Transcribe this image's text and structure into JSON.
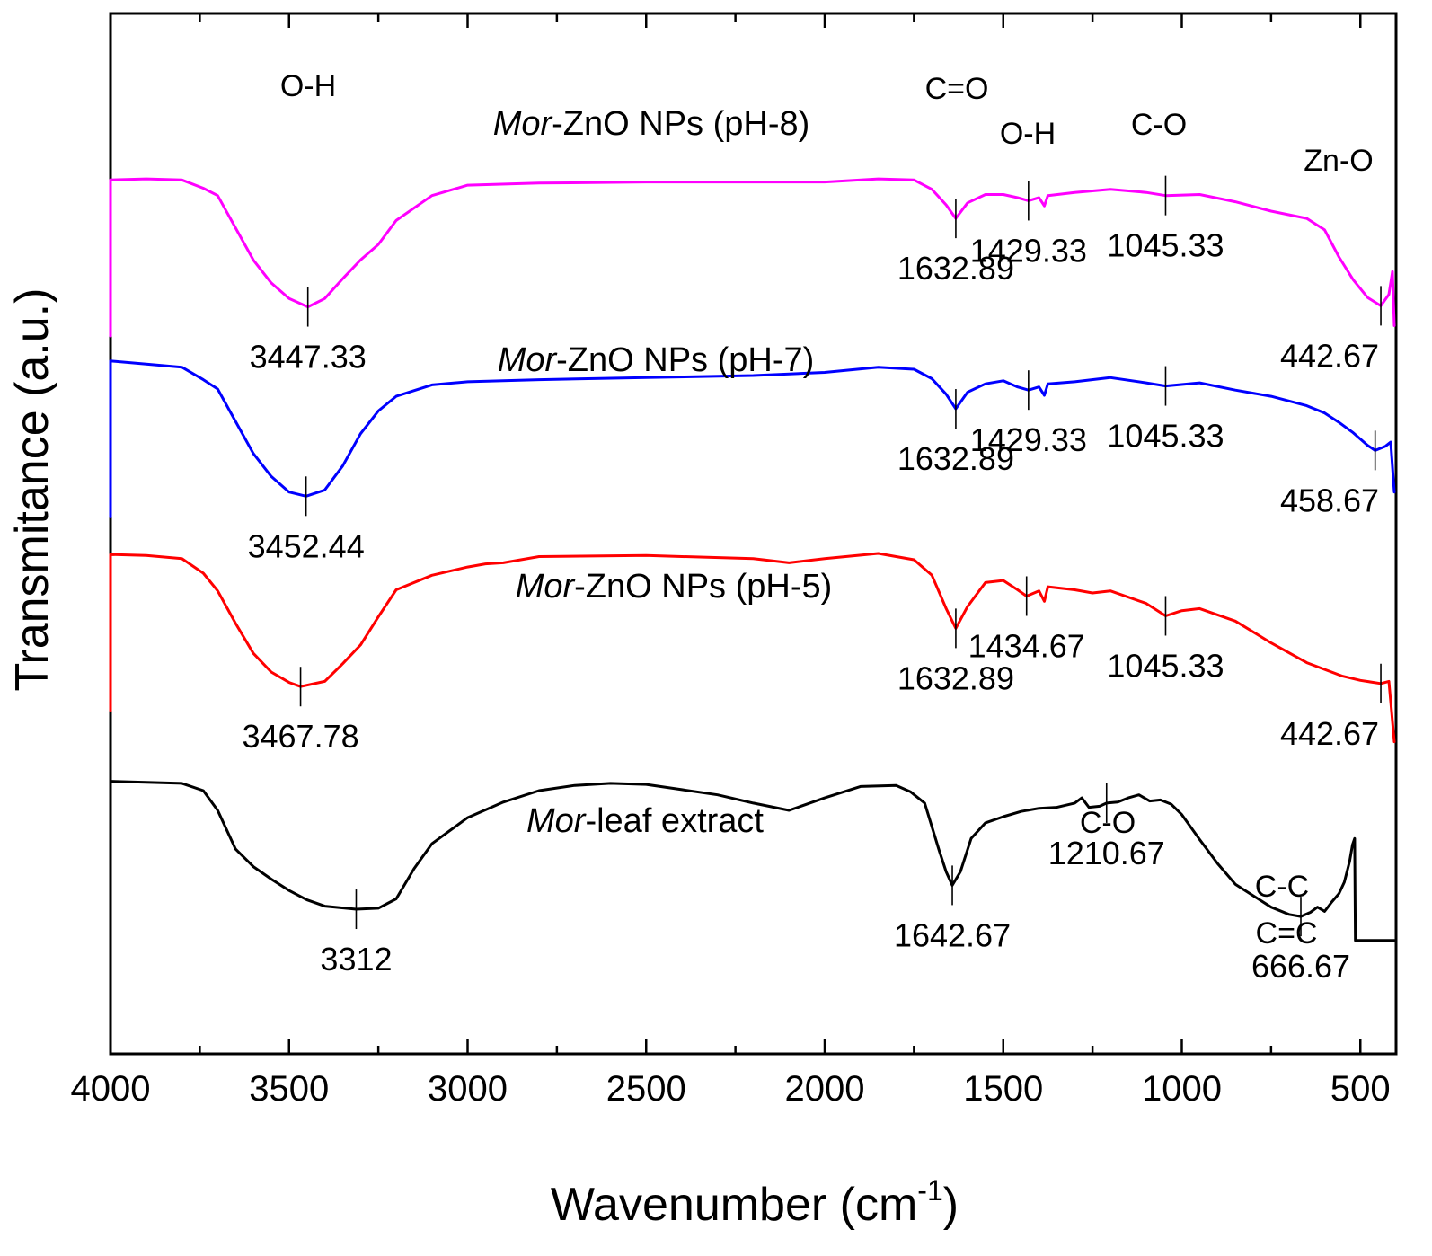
{
  "chart_data": {
    "type": "line",
    "xlabel": "Wavenumber (cm",
    "xlabel_sup": "-1",
    "xlabel_end": ")",
    "ylabel": "Transmitance (a.u.)",
    "xlim": [
      4000,
      400
    ],
    "x_reversed": true,
    "ylim": [
      0,
      100
    ],
    "y_ticks_shown": false,
    "grid": false,
    "legend": "none",
    "x_ticks": [
      {
        "value": 4000,
        "label": "4000"
      },
      {
        "value": 3500,
        "label": "3500"
      },
      {
        "value": 3000,
        "label": "3000"
      },
      {
        "value": 2500,
        "label": "2500"
      },
      {
        "value": 2000,
        "label": "2000"
      },
      {
        "value": 1500,
        "label": "1500"
      },
      {
        "value": 1000,
        "label": "1000"
      },
      {
        "value": 500,
        "label": "500"
      }
    ],
    "x_minor_ticks": [
      3750,
      3250,
      2750,
      2250,
      1750,
      1250,
      750
    ],
    "series": [
      {
        "label_italic": "Mor",
        "label_rest": "-ZnO NPs (pH-8)",
        "color": "#ff00ff",
        "points": [
          [
            4000,
            84.0
          ],
          [
            3900,
            84.1
          ],
          [
            3800,
            84.0
          ],
          [
            3740,
            83.2
          ],
          [
            3700,
            82.5
          ],
          [
            3650,
            79.4
          ],
          [
            3600,
            76.3
          ],
          [
            3550,
            74.1
          ],
          [
            3500,
            72.6
          ],
          [
            3447.33,
            71.8
          ],
          [
            3400,
            72.6
          ],
          [
            3350,
            74.5
          ],
          [
            3300,
            76.3
          ],
          [
            3250,
            77.8
          ],
          [
            3200,
            80.1
          ],
          [
            3100,
            82.5
          ],
          [
            3000,
            83.5
          ],
          [
            2800,
            83.7
          ],
          [
            2500,
            83.8
          ],
          [
            2200,
            83.8
          ],
          [
            2000,
            83.8
          ],
          [
            1850,
            84.1
          ],
          [
            1750,
            84.0
          ],
          [
            1700,
            83.1
          ],
          [
            1660,
            81.6
          ],
          [
            1632.89,
            80.3
          ],
          [
            1600,
            81.8
          ],
          [
            1550,
            82.6
          ],
          [
            1500,
            82.6
          ],
          [
            1460,
            82.3
          ],
          [
            1429.33,
            82.0
          ],
          [
            1400,
            82.3
          ],
          [
            1385,
            81.5
          ],
          [
            1375,
            82.5
          ],
          [
            1300,
            82.8
          ],
          [
            1200,
            83.1
          ],
          [
            1100,
            82.8
          ],
          [
            1045.33,
            82.5
          ],
          [
            950,
            82.6
          ],
          [
            850,
            81.9
          ],
          [
            750,
            81.0
          ],
          [
            650,
            80.3
          ],
          [
            600,
            79.2
          ],
          [
            560,
            76.6
          ],
          [
            520,
            74.4
          ],
          [
            480,
            72.7
          ],
          [
            442.67,
            71.9
          ],
          [
            420,
            73.0
          ],
          [
            410,
            75.2
          ],
          [
            405,
            70.0
          ]
        ]
      },
      {
        "label_italic": "Mor",
        "label_rest": "-ZnO NPs (pH-7)",
        "color": "#0000ff",
        "points": [
          [
            4000,
            66.6
          ],
          [
            3900,
            66.3
          ],
          [
            3800,
            66.0
          ],
          [
            3740,
            64.8
          ],
          [
            3700,
            63.9
          ],
          [
            3650,
            60.8
          ],
          [
            3600,
            57.7
          ],
          [
            3550,
            55.5
          ],
          [
            3500,
            54.0
          ],
          [
            3452.44,
            53.6
          ],
          [
            3400,
            54.2
          ],
          [
            3350,
            56.5
          ],
          [
            3300,
            59.6
          ],
          [
            3250,
            61.8
          ],
          [
            3200,
            63.2
          ],
          [
            3100,
            64.3
          ],
          [
            3000,
            64.6
          ],
          [
            2800,
            64.8
          ],
          [
            2500,
            65.0
          ],
          [
            2200,
            65.2
          ],
          [
            2000,
            65.5
          ],
          [
            1850,
            66.0
          ],
          [
            1750,
            65.8
          ],
          [
            1700,
            64.9
          ],
          [
            1660,
            63.4
          ],
          [
            1632.89,
            62.0
          ],
          [
            1600,
            63.6
          ],
          [
            1550,
            64.4
          ],
          [
            1500,
            64.7
          ],
          [
            1460,
            64.1
          ],
          [
            1429.33,
            63.8
          ],
          [
            1400,
            64.1
          ],
          [
            1385,
            63.3
          ],
          [
            1375,
            64.4
          ],
          [
            1300,
            64.6
          ],
          [
            1200,
            65.0
          ],
          [
            1100,
            64.5
          ],
          [
            1045.33,
            64.2
          ],
          [
            950,
            64.5
          ],
          [
            850,
            63.8
          ],
          [
            750,
            63.2
          ],
          [
            650,
            62.3
          ],
          [
            600,
            61.6
          ],
          [
            560,
            60.7
          ],
          [
            520,
            59.7
          ],
          [
            480,
            58.5
          ],
          [
            458.67,
            58.0
          ],
          [
            430,
            58.4
          ],
          [
            415,
            58.8
          ],
          [
            405,
            54.0
          ]
        ]
      },
      {
        "label_italic": "Mor",
        "label_rest": "-ZnO NPs (pH-5)",
        "color": "#ff0000",
        "points": [
          [
            4000,
            48.0
          ],
          [
            3900,
            47.9
          ],
          [
            3800,
            47.6
          ],
          [
            3740,
            46.2
          ],
          [
            3700,
            44.5
          ],
          [
            3650,
            41.4
          ],
          [
            3600,
            38.5
          ],
          [
            3550,
            36.7
          ],
          [
            3500,
            35.7
          ],
          [
            3467.78,
            35.3
          ],
          [
            3400,
            35.8
          ],
          [
            3350,
            37.5
          ],
          [
            3300,
            39.3
          ],
          [
            3250,
            42.0
          ],
          [
            3200,
            44.6
          ],
          [
            3100,
            46.0
          ],
          [
            3000,
            46.8
          ],
          [
            2950,
            47.1
          ],
          [
            2900,
            47.2
          ],
          [
            2800,
            47.8
          ],
          [
            2500,
            47.9
          ],
          [
            2200,
            47.6
          ],
          [
            2100,
            47.2
          ],
          [
            2000,
            47.6
          ],
          [
            1850,
            48.1
          ],
          [
            1750,
            47.5
          ],
          [
            1700,
            46.0
          ],
          [
            1660,
            42.8
          ],
          [
            1632.89,
            40.9
          ],
          [
            1600,
            43.0
          ],
          [
            1550,
            45.3
          ],
          [
            1500,
            45.5
          ],
          [
            1460,
            44.6
          ],
          [
            1434.67,
            44.0
          ],
          [
            1400,
            44.5
          ],
          [
            1385,
            43.5
          ],
          [
            1375,
            44.9
          ],
          [
            1300,
            44.6
          ],
          [
            1250,
            44.3
          ],
          [
            1200,
            44.5
          ],
          [
            1100,
            43.3
          ],
          [
            1045.33,
            42.1
          ],
          [
            1000,
            42.6
          ],
          [
            950,
            42.8
          ],
          [
            850,
            41.6
          ],
          [
            750,
            39.5
          ],
          [
            650,
            37.6
          ],
          [
            550,
            36.3
          ],
          [
            500,
            35.9
          ],
          [
            442.67,
            35.6
          ],
          [
            420,
            35.8
          ],
          [
            405,
            30.0
          ]
        ]
      },
      {
        "label_italic": "Mor",
        "label_rest": "-leaf extract",
        "color": "#000000",
        "points": [
          [
            4000,
            26.2
          ],
          [
            3900,
            26.1
          ],
          [
            3800,
            26.0
          ],
          [
            3740,
            25.3
          ],
          [
            3700,
            23.4
          ],
          [
            3650,
            19.7
          ],
          [
            3600,
            18.0
          ],
          [
            3550,
            16.8
          ],
          [
            3500,
            15.7
          ],
          [
            3450,
            14.8
          ],
          [
            3400,
            14.2
          ],
          [
            3312,
            13.9
          ],
          [
            3250,
            14.0
          ],
          [
            3200,
            14.9
          ],
          [
            3150,
            17.8
          ],
          [
            3100,
            20.2
          ],
          [
            3000,
            22.7
          ],
          [
            2900,
            24.2
          ],
          [
            2800,
            25.3
          ],
          [
            2700,
            25.8
          ],
          [
            2600,
            26.0
          ],
          [
            2500,
            25.9
          ],
          [
            2400,
            25.4
          ],
          [
            2300,
            24.9
          ],
          [
            2200,
            24.1
          ],
          [
            2100,
            23.4
          ],
          [
            2000,
            24.6
          ],
          [
            1900,
            25.7
          ],
          [
            1800,
            25.8
          ],
          [
            1760,
            25.2
          ],
          [
            1720,
            24.1
          ],
          [
            1680,
            19.6
          ],
          [
            1660,
            17.5
          ],
          [
            1642.67,
            16.2
          ],
          [
            1620,
            17.5
          ],
          [
            1590,
            20.7
          ],
          [
            1550,
            22.2
          ],
          [
            1500,
            22.8
          ],
          [
            1450,
            23.3
          ],
          [
            1400,
            23.6
          ],
          [
            1350,
            23.7
          ],
          [
            1300,
            24.1
          ],
          [
            1280,
            24.6
          ],
          [
            1260,
            23.7
          ],
          [
            1230,
            23.8
          ],
          [
            1210.67,
            24.1
          ],
          [
            1180,
            24.2
          ],
          [
            1150,
            24.6
          ],
          [
            1120,
            24.9
          ],
          [
            1090,
            24.3
          ],
          [
            1060,
            24.4
          ],
          [
            1030,
            24.0
          ],
          [
            1000,
            23.0
          ],
          [
            950,
            20.6
          ],
          [
            900,
            18.3
          ],
          [
            850,
            16.3
          ],
          [
            800,
            15.2
          ],
          [
            750,
            14.1
          ],
          [
            700,
            13.4
          ],
          [
            666.67,
            13.2
          ],
          [
            640,
            13.6
          ],
          [
            620,
            14.1
          ],
          [
            600,
            13.7
          ],
          [
            580,
            14.6
          ],
          [
            560,
            15.4
          ],
          [
            545,
            16.5
          ],
          [
            530,
            18.5
          ],
          [
            522,
            20.1
          ],
          [
            516,
            20.7
          ],
          [
            514,
            10.9
          ],
          [
            480,
            10.9
          ],
          [
            440,
            10.9
          ],
          [
            405,
            10.9
          ]
        ]
      }
    ],
    "peak_markers": [
      {
        "series": 0,
        "x": 3447.33,
        "label": "3447.33"
      },
      {
        "series": 0,
        "x": 1632.89,
        "label": "1632.89"
      },
      {
        "series": 0,
        "x": 1429.33,
        "label": "1429.33"
      },
      {
        "series": 0,
        "x": 1045.33,
        "label": "1045.33"
      },
      {
        "series": 0,
        "x": 442.67,
        "label": "442.67"
      },
      {
        "series": 1,
        "x": 3452.44,
        "label": "3452.44"
      },
      {
        "series": 1,
        "x": 1632.89,
        "label": "1632.89"
      },
      {
        "series": 1,
        "x": 1429.33,
        "label": "1429.33"
      },
      {
        "series": 1,
        "x": 1045.33,
        "label": "1045.33"
      },
      {
        "series": 1,
        "x": 458.67,
        "label": "458.67"
      },
      {
        "series": 2,
        "x": 3467.78,
        "label": "3467.78"
      },
      {
        "series": 2,
        "x": 1632.89,
        "label": "1632.89"
      },
      {
        "series": 2,
        "x": 1434.67,
        "label": "1434.67"
      },
      {
        "series": 2,
        "x": 1045.33,
        "label": "1045.33"
      },
      {
        "series": 2,
        "x": 442.67,
        "label": "442.67"
      },
      {
        "series": 3,
        "x": 3312,
        "label": "3312"
      },
      {
        "series": 3,
        "x": 1642.67,
        "label": "1642.67"
      },
      {
        "series": 3,
        "x": 1210.67,
        "label": "1210.67"
      },
      {
        "series": 3,
        "x": 666.67,
        "label": "666.67"
      }
    ],
    "group_labels": [
      "O-H",
      "C=O",
      "O-H",
      "C-O",
      "Zn-O",
      "C-O",
      "C-C",
      "C=C"
    ]
  }
}
